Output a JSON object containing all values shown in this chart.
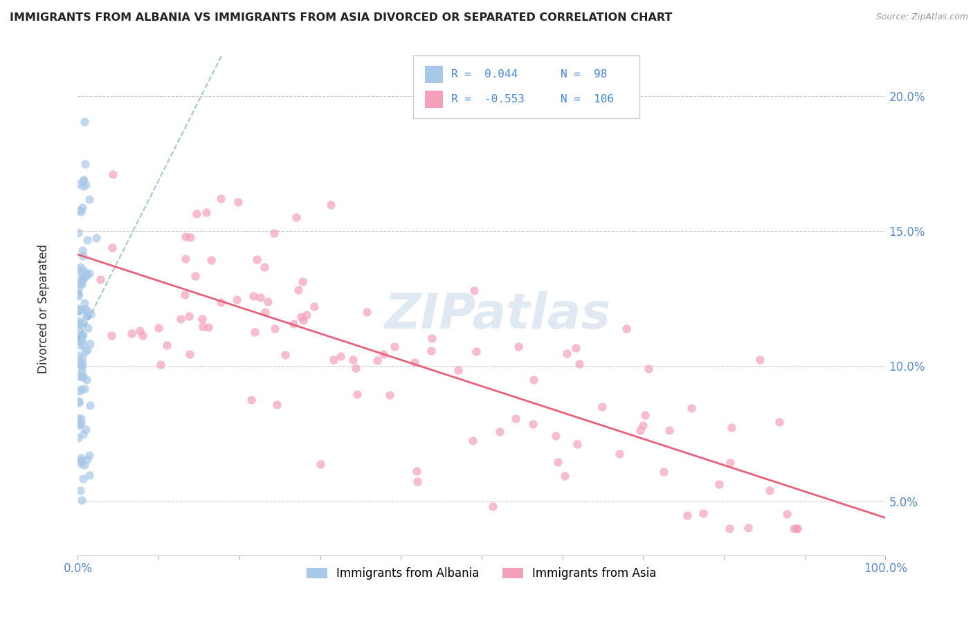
{
  "title": "IMMIGRANTS FROM ALBANIA VS IMMIGRANTS FROM ASIA DIVORCED OR SEPARATED CORRELATION CHART",
  "source": "Source: ZipAtlas.com",
  "ylabel": "Divorced or Separated",
  "r1": 0.044,
  "n1": 98,
  "r2": -0.553,
  "n2": 106,
  "color1": "#a8c8e8",
  "color2": "#f4a0b8",
  "trend_color1": "#8ab8d8",
  "trend_color2": "#e8607a",
  "xlim": [
    0,
    1.0
  ],
  "ylim": [
    0.03,
    0.215
  ],
  "legend_label_1": "Immigrants from Albania",
  "legend_label_2": "Immigrants from Asia",
  "yticks": [
    0.05,
    0.1,
    0.15,
    0.2
  ],
  "ytick_labels": [
    "5.0%",
    "10.0%",
    "15.0%",
    "20.0%"
  ],
  "xtick_labels_ends": [
    "0.0%",
    "100.0%"
  ]
}
